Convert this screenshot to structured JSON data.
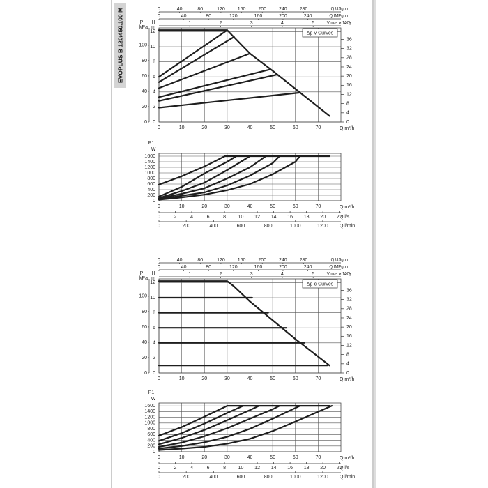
{
  "page_title": "EVOPLUS B 120/450.100 M",
  "chart_data": [
    {
      "type": "line",
      "legend_label": "Δp-v Curves",
      "xlabel": "Q m³/h",
      "xlim": [
        0,
        80
      ],
      "xticks": [
        0,
        10,
        20,
        30,
        40,
        50,
        60,
        70
      ],
      "ylabel": [
        "H",
        "m"
      ],
      "ylim": [
        0,
        12.5
      ],
      "yticks": [
        0,
        2,
        4,
        6,
        8,
        10,
        12
      ],
      "y2label": [
        "H",
        "ft"
      ],
      "y2lim": [
        0,
        41
      ],
      "y2ticks": [
        0,
        4,
        8,
        12,
        16,
        20,
        24,
        28,
        32,
        36
      ],
      "y3label": [
        "P",
        "kPa"
      ],
      "y3lim": [
        0,
        122.6
      ],
      "y3ticks": [
        0,
        20,
        40,
        60,
        80,
        100
      ],
      "top_axes": [
        {
          "label": "Q USgpm",
          "lim": [
            0,
            352.2
          ],
          "ticks": [
            0,
            40,
            80,
            120,
            160,
            200,
            240,
            280
          ]
        },
        {
          "label": "Q IMPgpm",
          "lim": [
            0,
            293.3
          ],
          "ticks": [
            0,
            40,
            80,
            120,
            160,
            200,
            240
          ]
        },
        {
          "label": "V m/s ⌀ 100",
          "lim": [
            0,
            5.9
          ],
          "ticks": [
            1,
            2,
            3,
            4,
            5
          ]
        }
      ],
      "grid": true,
      "series": [
        {
          "color": "#1e1e1e",
          "x": [
            0,
            30,
            40,
            50,
            60,
            75
          ],
          "values": [
            12.2,
            12.2,
            9.1,
            6.8,
            4.4,
            0.8
          ]
        },
        {
          "color": "#1e1e1e",
          "x": [
            0,
            30
          ],
          "values": [
            6,
            12.2
          ]
        },
        {
          "color": "#1e1e1e",
          "x": [
            0,
            33
          ],
          "values": [
            5.3,
            11.3
          ]
        },
        {
          "color": "#1e1e1e",
          "x": [
            0,
            40
          ],
          "values": [
            4.5,
            9.1
          ]
        },
        {
          "color": "#1e1e1e",
          "x": [
            0,
            49
          ],
          "values": [
            3.3,
            7.0
          ]
        },
        {
          "color": "#1e1e1e",
          "x": [
            0,
            52
          ],
          "values": [
            2.8,
            6.3
          ]
        },
        {
          "color": "#1e1e1e",
          "x": [
            0,
            62
          ],
          "values": [
            1.9,
            3.9
          ]
        }
      ]
    },
    {
      "type": "line",
      "xlabel": "Q m³/h",
      "xlim": [
        0,
        80
      ],
      "xticks": [
        0,
        10,
        20,
        30,
        40,
        50,
        60,
        70
      ],
      "ylabel": [
        "P1",
        "W"
      ],
      "ylim": [
        0,
        1700
      ],
      "yticks": [
        0,
        200,
        400,
        600,
        800,
        1000,
        1200,
        1400,
        1600
      ],
      "bottom_axes": [
        {
          "label": "Q l/s",
          "lim": [
            0,
            22.2
          ],
          "ticks": [
            0,
            2,
            4,
            6,
            8,
            10,
            12,
            14,
            16,
            18,
            20,
            22
          ]
        },
        {
          "label": "Q l/min",
          "lim": [
            0,
            1333
          ],
          "ticks": [
            0,
            200,
            400,
            600,
            800,
            1000,
            1200
          ]
        }
      ],
      "grid": true,
      "series": [
        {
          "color": "#1e1e1e",
          "x": [
            29,
            75
          ],
          "values": [
            1600,
            1600
          ]
        },
        {
          "color": "#1e1e1e",
          "x": [
            0,
            10,
            20,
            29
          ],
          "values": [
            580,
            880,
            1230,
            1600
          ]
        },
        {
          "color": "#1e1e1e",
          "x": [
            0,
            10,
            20,
            30,
            34
          ],
          "values": [
            150,
            500,
            980,
            1400,
            1600
          ]
        },
        {
          "color": "#1e1e1e",
          "x": [
            0,
            10,
            20,
            30,
            40
          ],
          "values": [
            100,
            350,
            650,
            1100,
            1600
          ]
        },
        {
          "color": "#1e1e1e",
          "x": [
            0,
            10,
            20,
            30,
            40,
            47
          ],
          "values": [
            80,
            250,
            450,
            800,
            1200,
            1600
          ]
        },
        {
          "color": "#1e1e1e",
          "x": [
            0,
            10,
            20,
            30,
            40,
            50,
            53
          ],
          "values": [
            60,
            180,
            300,
            550,
            900,
            1350,
            1600
          ]
        },
        {
          "color": "#1e1e1e",
          "x": [
            0,
            10,
            20,
            30,
            40,
            50,
            60,
            62
          ],
          "values": [
            40,
            120,
            220,
            380,
            600,
            950,
            1400,
            1600
          ]
        }
      ]
    },
    {
      "type": "line",
      "legend_label": "Δp-c Curves",
      "xlabel": "Q m³/h",
      "xlim": [
        0,
        80
      ],
      "xticks": [
        0,
        10,
        20,
        30,
        40,
        50,
        60,
        70
      ],
      "ylabel": [
        "H",
        "m"
      ],
      "ylim": [
        0,
        12.5
      ],
      "yticks": [
        0,
        2,
        4,
        6,
        8,
        10,
        12
      ],
      "y2label": [
        "H",
        "ft"
      ],
      "y2lim": [
        0,
        41
      ],
      "y2ticks": [
        0,
        4,
        8,
        12,
        16,
        20,
        24,
        28,
        32,
        36
      ],
      "y3label": [
        "P",
        "kPa"
      ],
      "y3lim": [
        0,
        122.6
      ],
      "y3ticks": [
        0,
        20,
        40,
        60,
        80,
        100
      ],
      "top_axes": [
        {
          "label": "Q USgpm",
          "lim": [
            0,
            352.2
          ],
          "ticks": [
            0,
            40,
            80,
            120,
            160,
            200,
            240,
            280
          ]
        },
        {
          "label": "Q IMPgpm",
          "lim": [
            0,
            293.3
          ],
          "ticks": [
            0,
            40,
            80,
            120,
            160,
            200,
            240
          ]
        },
        {
          "label": "V m/s ⌀ 100",
          "lim": [
            0,
            5.9
          ],
          "ticks": [
            1,
            2,
            3,
            4,
            5
          ]
        }
      ],
      "grid": true,
      "series": [
        {
          "color": "#1e1e1e",
          "x": [
            0,
            30,
            33,
            40,
            50,
            60,
            75
          ],
          "values": [
            12.2,
            12.2,
            11.5,
            9.5,
            7.0,
            4.5,
            1.0
          ]
        },
        {
          "color": "#1e1e1e",
          "x": [
            0,
            41
          ],
          "values": [
            10,
            10
          ]
        },
        {
          "color": "#1e1e1e",
          "x": [
            0,
            48
          ],
          "values": [
            8,
            8
          ]
        },
        {
          "color": "#1e1e1e",
          "x": [
            0,
            56
          ],
          "values": [
            6,
            6
          ]
        },
        {
          "color": "#1e1e1e",
          "x": [
            0,
            64
          ],
          "values": [
            4,
            4
          ]
        },
        {
          "color": "#1e1e1e",
          "x": [
            0,
            74
          ],
          "values": [
            1,
            1
          ]
        }
      ]
    },
    {
      "type": "line",
      "xlabel": "Q m³/h",
      "xlim": [
        0,
        80
      ],
      "xticks": [
        0,
        10,
        20,
        30,
        40,
        50,
        60,
        70
      ],
      "ylabel": [
        "P1",
        "W"
      ],
      "ylim": [
        0,
        1700
      ],
      "yticks": [
        0,
        200,
        400,
        600,
        800,
        1000,
        1200,
        1400,
        1600
      ],
      "bottom_axes": [
        {
          "label": "Q l/s",
          "lim": [
            0,
            22.2
          ],
          "ticks": [
            0,
            2,
            4,
            6,
            8,
            10,
            12,
            14,
            16,
            18,
            20,
            22
          ]
        },
        {
          "label": "Q l/min",
          "lim": [
            0,
            1333
          ],
          "ticks": [
            0,
            200,
            400,
            600,
            800,
            1000,
            1200
          ]
        }
      ],
      "grid": true,
      "series": [
        {
          "color": "#1e1e1e",
          "x": [
            30,
            75
          ],
          "values": [
            1600,
            1600
          ]
        },
        {
          "color": "#1e1e1e",
          "x": [
            0,
            10,
            20,
            30
          ],
          "values": [
            560,
            860,
            1220,
            1600
          ]
        },
        {
          "color": "#1e1e1e",
          "x": [
            0,
            10,
            20,
            30,
            37
          ],
          "values": [
            380,
            650,
            980,
            1350,
            1600
          ]
        },
        {
          "color": "#1e1e1e",
          "x": [
            0,
            10,
            20,
            30,
            40,
            44
          ],
          "values": [
            260,
            480,
            760,
            1100,
            1450,
            1600
          ]
        },
        {
          "color": "#1e1e1e",
          "x": [
            0,
            10,
            20,
            30,
            40,
            50,
            53
          ],
          "values": [
            170,
            320,
            540,
            820,
            1150,
            1480,
            1600
          ]
        },
        {
          "color": "#1e1e1e",
          "x": [
            0,
            10,
            20,
            30,
            40,
            50,
            62
          ],
          "values": [
            110,
            200,
            330,
            520,
            800,
            1150,
            1600
          ]
        },
        {
          "color": "#1e1e1e",
          "x": [
            0,
            10,
            20,
            30,
            40,
            50,
            60,
            76
          ],
          "values": [
            60,
            110,
            170,
            280,
            450,
            720,
            1050,
            1600
          ]
        }
      ]
    }
  ]
}
